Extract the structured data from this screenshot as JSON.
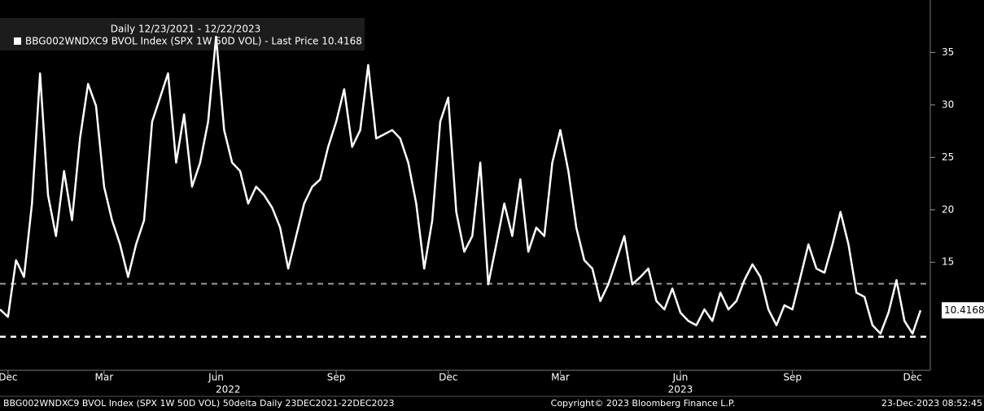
{
  "chart_data": {
    "type": "line",
    "header": "Daily 12/23/2021 - 12/22/2023",
    "categories": [
      null,
      "Dec",
      null,
      null,
      null,
      null,
      null,
      null,
      null,
      null,
      null,
      null,
      null,
      "Mar",
      null,
      null,
      null,
      null,
      null,
      null,
      null,
      null,
      null,
      null,
      null,
      null,
      null,
      "Jun",
      null,
      null,
      null,
      null,
      null,
      null,
      null,
      null,
      null,
      null,
      null,
      null,
      null,
      null,
      "Sep",
      null,
      null,
      null,
      null,
      null,
      null,
      null,
      null,
      null,
      null,
      null,
      null,
      null,
      "Dec",
      null,
      null,
      null,
      null,
      null,
      null,
      null,
      null,
      null,
      null,
      null,
      null,
      null,
      "Mar",
      null,
      null,
      null,
      null,
      null,
      null,
      null,
      null,
      null,
      null,
      null,
      null,
      null,
      null,
      "Jun",
      null,
      null,
      null,
      null,
      null,
      null,
      null,
      null,
      null,
      null,
      null,
      null,
      null,
      "Sep",
      null,
      null,
      null,
      null,
      null,
      null,
      null,
      null,
      null,
      null,
      null,
      null,
      null,
      null,
      "Dec",
      null
    ],
    "x_years": [
      "2022",
      "2023"
    ],
    "series": [
      {
        "name": "BBG002WNDXC9 BVOL Index (SPX 1W 50D VOL) - Last Price 10.4168",
        "color": "#ffffff",
        "values": [
          10.5,
          9.8,
          15.2,
          13.6,
          20.6,
          33,
          21.4,
          17.5,
          23.7,
          19,
          26.8,
          32,
          29.9,
          22.2,
          19,
          16.7,
          13.6,
          16.7,
          19,
          28.4,
          30.7,
          33,
          24.5,
          29.1,
          22.2,
          24.5,
          28.4,
          36.5,
          27.6,
          24.5,
          23.7,
          20.6,
          22.2,
          21.4,
          20.2,
          18.3,
          14.4,
          17.5,
          20.6,
          22.2,
          22.9,
          26,
          28.4,
          31.5,
          26,
          27.6,
          33.8,
          26.8,
          27.2,
          27.6,
          26.8,
          24.5,
          20.6,
          14.4,
          19,
          28.4,
          30.7,
          19.8,
          16,
          17.5,
          24.5,
          12.9,
          16.7,
          20.6,
          17.5,
          22.9,
          16,
          18.3,
          17.5,
          24.5,
          27.6,
          23.7,
          18.3,
          15.2,
          14.4,
          11.3,
          12.9,
          15.2,
          17.5,
          12.9,
          13.6,
          14.4,
          11.3,
          10.5,
          12.5,
          10.2,
          9.4,
          9,
          10.5,
          9.4,
          12.1,
          10.5,
          11.3,
          13.3,
          14.8,
          13.6,
          10.5,
          9,
          10.9,
          10.5,
          13.6,
          16.7,
          14.4,
          14,
          16.7,
          19.8,
          16.7,
          12.1,
          11.7,
          9,
          8.2,
          10.2,
          13.3,
          9.4,
          8.2,
          10.4168
        ]
      }
    ],
    "reference_lines": [
      {
        "value": 12.95,
        "color": "#9a9a9a"
      },
      {
        "value": 7.9,
        "color": "#ffffff"
      }
    ],
    "ylim": [
      4.7,
      40
    ],
    "yticks": [
      15,
      20,
      25,
      30,
      35
    ],
    "footer": {
      "left": "BBG002WNDXC9 BVOL Index (SPX 1W 50D VOL) 50delta  Daily 23DEC2021-22DEC2023",
      "center": "Copyright© 2023 Bloomberg Finance L.P.",
      "right": "23-Dec-2023 08:52:45"
    }
  }
}
